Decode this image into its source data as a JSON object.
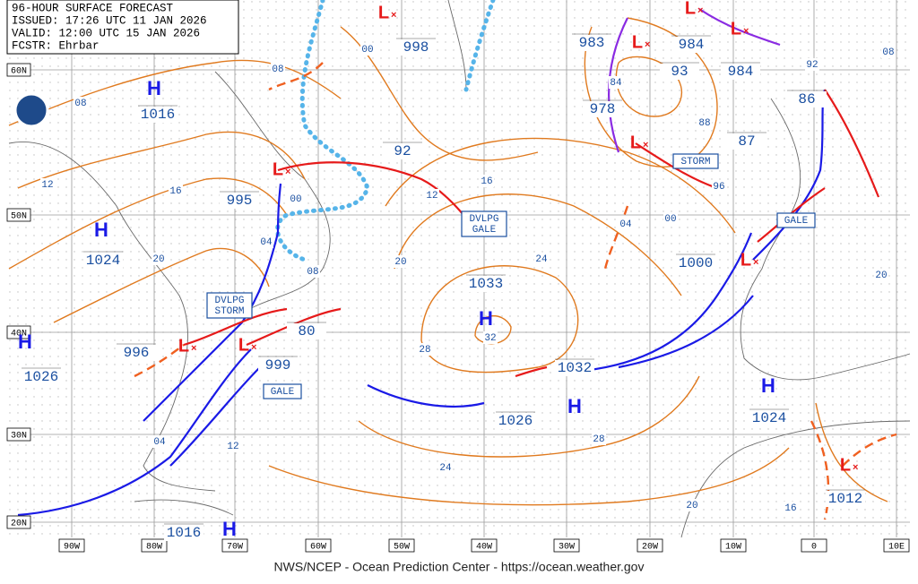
{
  "header": {
    "title": "96-HOUR SURFACE FORECAST",
    "issued": "ISSUED: 17:26 UTC 11 JAN 2026",
    "valid": "VALID:  12:00 UTC 15 JAN 2026",
    "forecaster": "FCSTR:  Ehrbar"
  },
  "latitudes": [
    "60N",
    "50N",
    "40N",
    "30N",
    "20N"
  ],
  "longitudes": [
    "90W",
    "80W",
    "70W",
    "60W",
    "50W",
    "40W",
    "30W",
    "20W",
    "10W",
    "0",
    "10E"
  ],
  "centers": [
    "H",
    "H",
    "H",
    "H",
    "H",
    "H",
    "H",
    "L",
    "L",
    "L",
    "L",
    "L",
    "L",
    "L",
    "L",
    "L",
    "L"
  ],
  "pressures": [
    "1016",
    "1024",
    "1026",
    "1033",
    "1032",
    "1026",
    "1024",
    "1016",
    "995",
    "996",
    "999",
    "80",
    "92",
    "998",
    "983",
    "984",
    "93",
    "984",
    "978",
    "86",
    "87",
    "1000",
    "1012"
  ],
  "isobar_labels": [
    "08",
    "12",
    "16",
    "20",
    "00",
    "04",
    "08",
    "12",
    "16",
    "20",
    "24",
    "28",
    "32",
    "04",
    "00",
    "88",
    "96",
    "00",
    "08",
    "84",
    "92",
    "08",
    "24",
    "28",
    "20",
    "16",
    "20",
    "04",
    "12"
  ],
  "warnings": [
    "STORM",
    "DVLPG GALE",
    "GALE",
    "DVLPG STORM",
    "GALE"
  ],
  "footer": "NWS/NCEP - Ocean Prediction Center - https://ocean.weather.gov"
}
